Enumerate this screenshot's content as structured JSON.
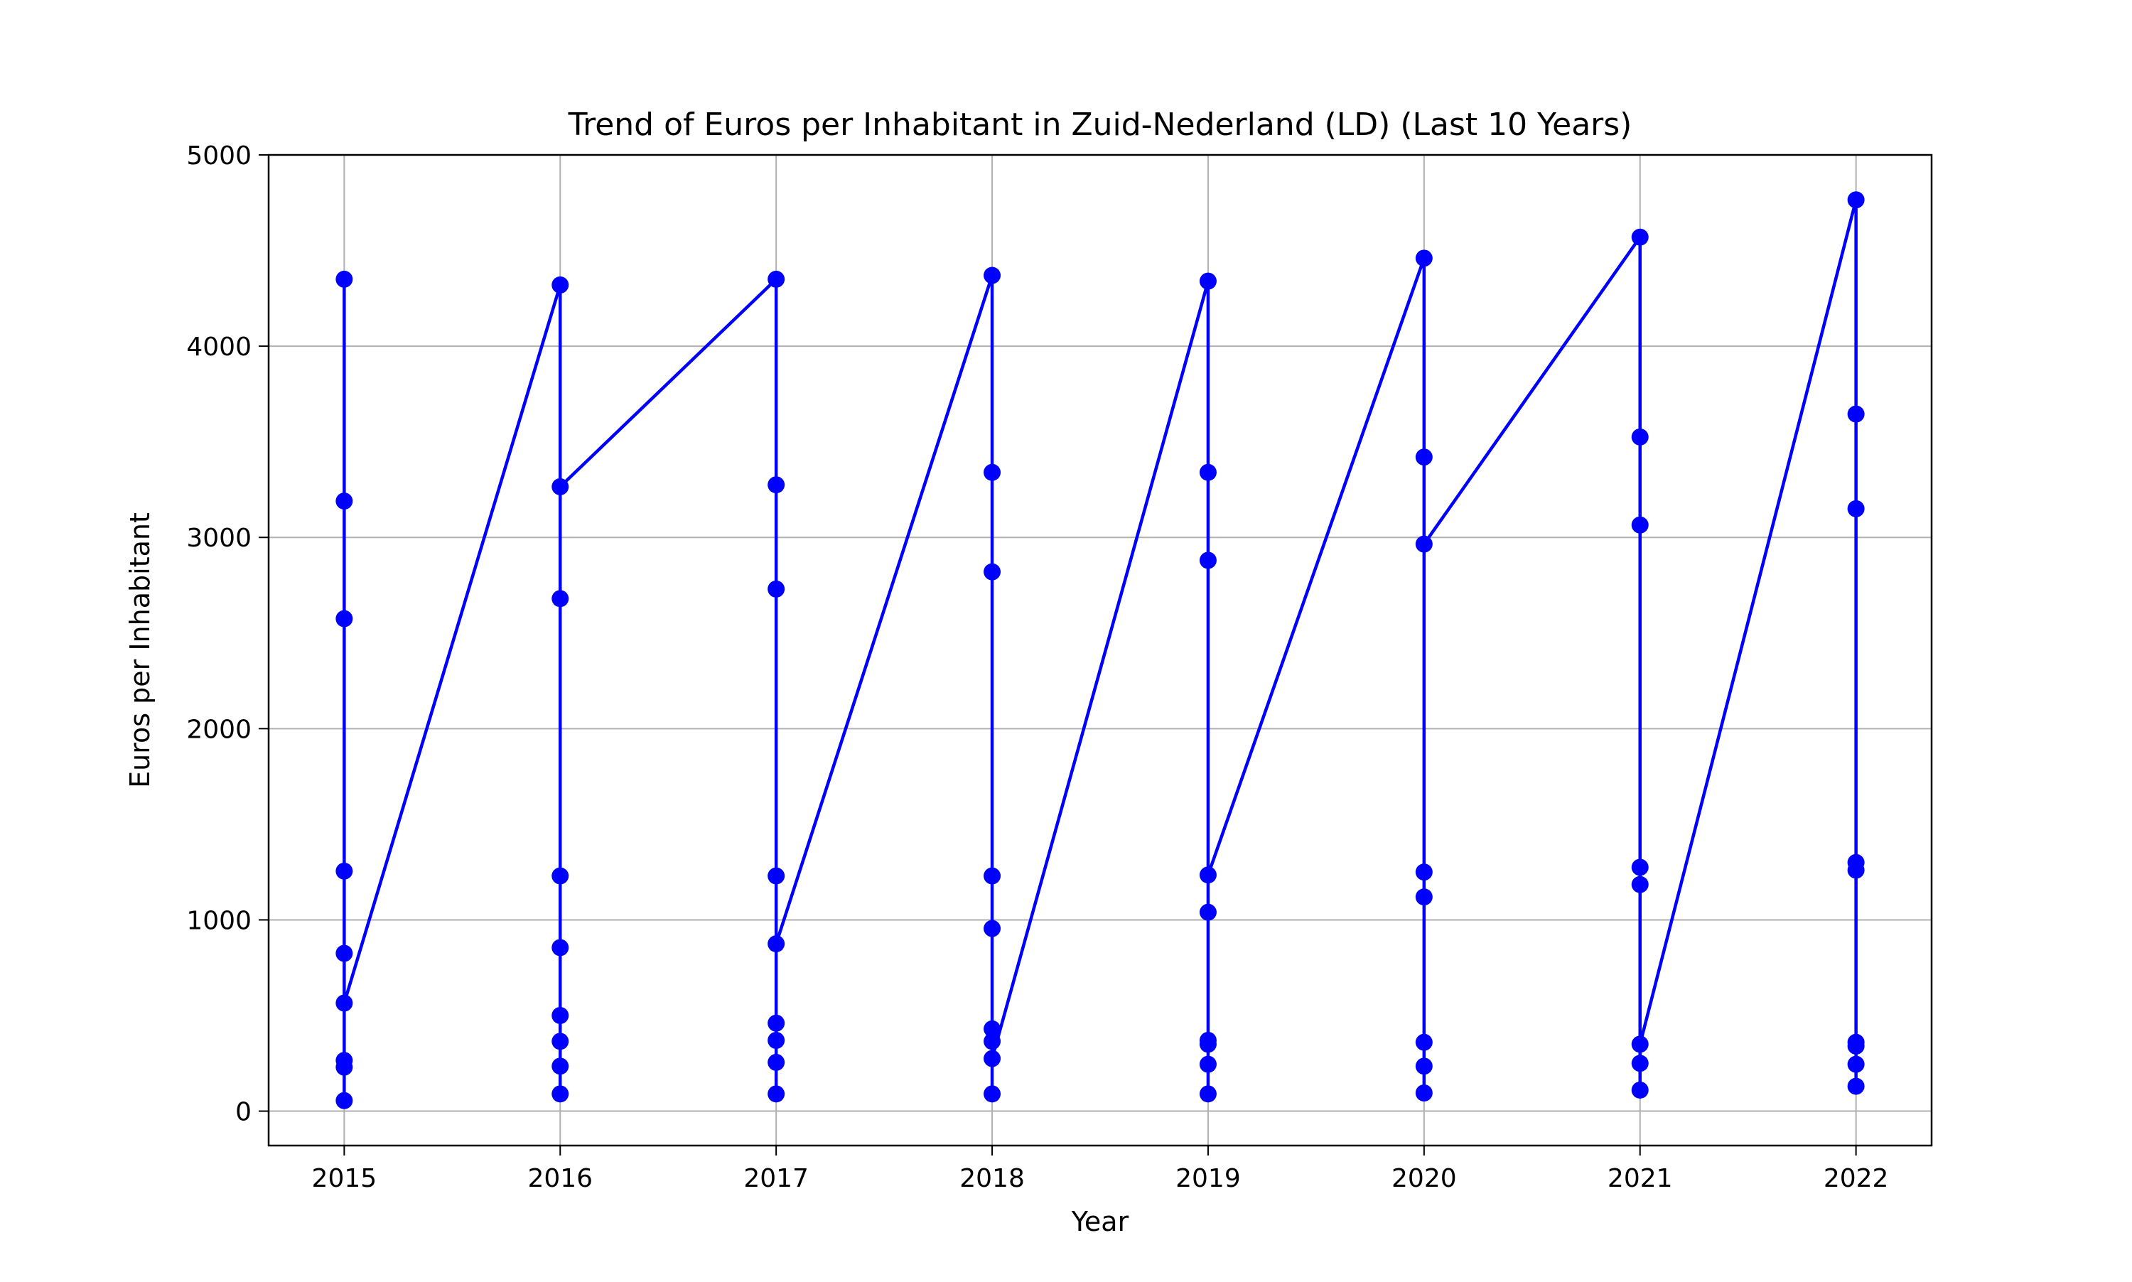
{
  "chart_data": {
    "type": "line",
    "title": "Trend of Euros per Inhabitant in Zuid-Nederland (LD) (Last 10 Years)",
    "xlabel": "Year",
    "ylabel": "Euros per Inhabitant",
    "xlim": [
      2014.65,
      2022.35
    ],
    "ylim": [
      -180,
      5000
    ],
    "xticks": [
      2015,
      2016,
      2017,
      2018,
      2019,
      2020,
      2021,
      2022
    ],
    "yticks": [
      0,
      1000,
      2000,
      3000,
      4000,
      5000
    ],
    "grid": true,
    "legend": "none",
    "series": [
      {
        "color": "#0000ff",
        "marker": "circle",
        "points": [
          [
            2015,
            4350
          ],
          [
            2015,
            3190
          ],
          [
            2015,
            2575
          ],
          [
            2015,
            1255
          ],
          [
            2015,
            825
          ],
          [
            2015,
            265
          ],
          [
            2015,
            230
          ],
          [
            2015,
            55
          ],
          [
            2015,
            565
          ],
          [
            2016,
            4320
          ],
          [
            2016,
            2680
          ],
          [
            2016,
            1230
          ],
          [
            2016,
            855
          ],
          [
            2016,
            500
          ],
          [
            2016,
            365
          ],
          [
            2016,
            235
          ],
          [
            2016,
            90
          ],
          [
            2016,
            3265
          ],
          [
            2017,
            4350
          ],
          [
            2017,
            3275
          ],
          [
            2017,
            2730
          ],
          [
            2017,
            1230
          ],
          [
            2017,
            370
          ],
          [
            2017,
            255
          ],
          [
            2017,
            90
          ],
          [
            2017,
            460
          ],
          [
            2017,
            875
          ],
          [
            2018,
            4370
          ],
          [
            2018,
            3340
          ],
          [
            2018,
            2820
          ],
          [
            2018,
            1230
          ],
          [
            2018,
            955
          ],
          [
            2018,
            430
          ],
          [
            2018,
            365
          ],
          [
            2018,
            90
          ],
          [
            2018,
            275
          ],
          [
            2019,
            4340
          ],
          [
            2019,
            3340
          ],
          [
            2019,
            2880
          ],
          [
            2019,
            1040
          ],
          [
            2019,
            370
          ],
          [
            2019,
            350
          ],
          [
            2019,
            245
          ],
          [
            2019,
            90
          ],
          [
            2019,
            1235
          ],
          [
            2020,
            4460
          ],
          [
            2020,
            3420
          ],
          [
            2020,
            1250
          ],
          [
            2020,
            1120
          ],
          [
            2020,
            360
          ],
          [
            2020,
            235
          ],
          [
            2020,
            95
          ],
          [
            2020,
            2965
          ],
          [
            2021,
            4570
          ],
          [
            2021,
            3525
          ],
          [
            2021,
            3065
          ],
          [
            2021,
            1275
          ],
          [
            2021,
            1185
          ],
          [
            2021,
            250
          ],
          [
            2021,
            110
          ],
          [
            2021,
            350
          ],
          [
            2022,
            4765
          ],
          [
            2022,
            3645
          ],
          [
            2022,
            3150
          ],
          [
            2022,
            1300
          ],
          [
            2022,
            1260
          ],
          [
            2022,
            360
          ],
          [
            2022,
            340
          ],
          [
            2022,
            245
          ],
          [
            2022,
            130
          ]
        ]
      }
    ]
  }
}
